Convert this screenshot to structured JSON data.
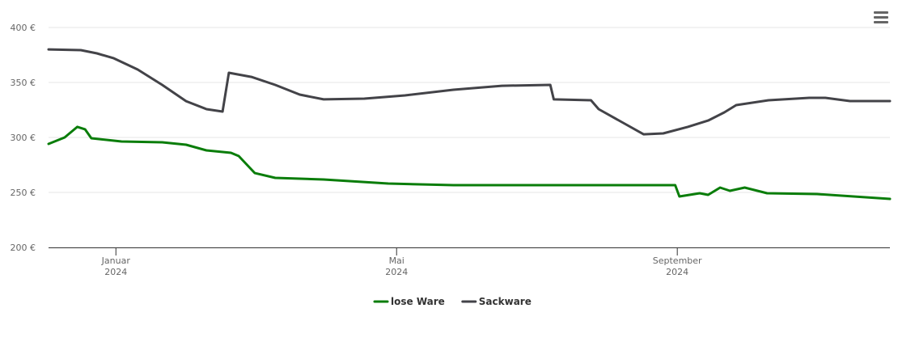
{
  "chart_data": {
    "type": "line",
    "x": [],
    "xlim": [
      -0.96,
      11.03
    ],
    "xticks": [
      {
        "value": 0,
        "label": "Januar 2024"
      },
      {
        "value": 4,
        "label": "Mai 2024"
      },
      {
        "value": 8,
        "label": "September 2024"
      }
    ],
    "ylim": [
      200,
      400
    ],
    "yticks": [
      {
        "value": 200,
        "label": "200 €"
      },
      {
        "value": 250,
        "label": "250 €"
      },
      {
        "value": 300,
        "label": "300 €"
      },
      {
        "value": 350,
        "label": "350 €"
      },
      {
        "value": 400,
        "label": "400 €"
      }
    ],
    "grid": true,
    "legend": "bottom",
    "series": [
      {
        "name": "lose Ware",
        "color": "#0a7d0a",
        "x": [
          -0.96,
          -0.73,
          -0.55,
          -0.44,
          -0.35,
          0.08,
          0.66,
          1.0,
          1.29,
          1.64,
          1.75,
          1.98,
          2.27,
          2.96,
          3.88,
          4.81,
          6.42,
          7.97,
          8.03,
          8.32,
          8.44,
          8.61,
          8.75,
          8.96,
          9.28,
          9.99,
          11.03
        ],
        "values": [
          294.1,
          300,
          309.6,
          307.4,
          299.3,
          296.3,
          295.6,
          293.4,
          288.2,
          286,
          283.1,
          267.6,
          263.2,
          261.8,
          258.1,
          256.6,
          256.6,
          256.6,
          246.3,
          249.3,
          247.8,
          254.4,
          251.5,
          254.4,
          249.3,
          248.5,
          244.1
        ]
      },
      {
        "name": "Sackware",
        "color": "#434348",
        "x": [
          -0.96,
          -0.5,
          -0.27,
          -0.03,
          0.31,
          0.66,
          1.0,
          1.29,
          1.52,
          1.61,
          1.93,
          2.27,
          2.62,
          2.96,
          3.54,
          4.12,
          4.81,
          5.5,
          6.19,
          6.24,
          6.77,
          6.88,
          7.23,
          7.52,
          7.8,
          8.15,
          8.44,
          8.67,
          8.84,
          9.3,
          9.88,
          10.11,
          10.46,
          11.03
        ],
        "values": [
          380.1,
          379.4,
          376.5,
          372,
          361.8,
          347.8,
          333,
          325.7,
          323.5,
          358.8,
          355.1,
          347.8,
          339,
          334.6,
          335.3,
          338.2,
          343.4,
          347,
          347.8,
          334.6,
          333.8,
          325.7,
          313.2,
          302.9,
          303.7,
          309.6,
          315.4,
          322.8,
          329.4,
          333.8,
          336,
          336,
          333.1,
          333.1
        ]
      }
    ]
  }
}
